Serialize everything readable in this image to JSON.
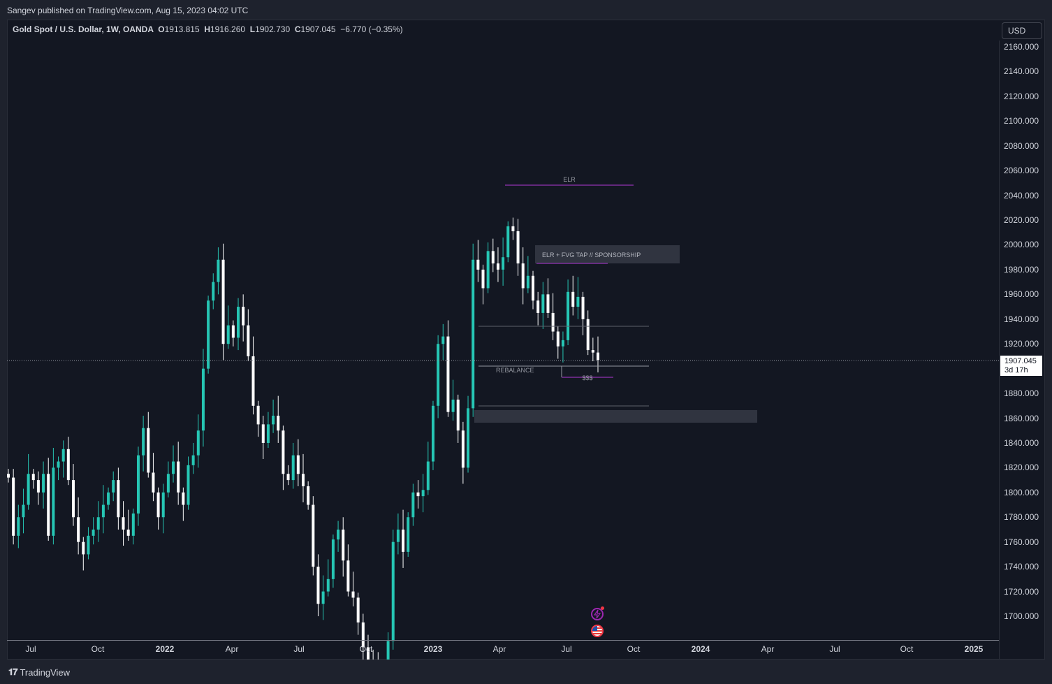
{
  "header": {
    "published": "Sangev published on TradingView.com, Aug 15, 2023 04:02 UTC"
  },
  "legend": {
    "symbol": "Gold Spot / U.S. Dollar, 1W, OANDA",
    "open_label": "O",
    "open": "1913.815",
    "high_label": "H",
    "high": "1916.260",
    "low_label": "L",
    "low": "1902.730",
    "close_label": "C",
    "close": "1907.045",
    "change": "−6.770 (−0.35%)"
  },
  "currency_button": "USD",
  "current_price": {
    "value": "1907.045",
    "countdown": "3d 17h"
  },
  "price_axis": [
    "2160.000",
    "2140.000",
    "2120.000",
    "2100.000",
    "2080.000",
    "2060.000",
    "2040.000",
    "2020.000",
    "2000.000",
    "1980.000",
    "1960.000",
    "1940.000",
    "1920.000",
    "1880.000",
    "1860.000",
    "1840.000",
    "1820.000",
    "1800.000",
    "1780.000",
    "1760.000",
    "1740.000",
    "1720.000",
    "1700.000"
  ],
  "time_axis": [
    {
      "label": "Jul",
      "year": false
    },
    {
      "label": "Oct",
      "year": false
    },
    {
      "label": "2022",
      "year": true
    },
    {
      "label": "Apr",
      "year": false
    },
    {
      "label": "Jul",
      "year": false
    },
    {
      "label": "Oct",
      "year": false
    },
    {
      "label": "2023",
      "year": true
    },
    {
      "label": "Apr",
      "year": false
    },
    {
      "label": "Jul",
      "year": false
    },
    {
      "label": "Oct",
      "year": false
    },
    {
      "label": "2024",
      "year": true
    },
    {
      "label": "Apr",
      "year": false
    },
    {
      "label": "Jul",
      "year": false
    },
    {
      "label": "Oct",
      "year": false
    },
    {
      "label": "2025",
      "year": true
    }
  ],
  "annotations": {
    "elr": "ELR",
    "elr_fvg": "ELR + FVG TAP // SPONSORSHIP",
    "rebalance": "REBALANCE",
    "sss": "$$$"
  },
  "colors": {
    "up": "#26c6b4",
    "down": "#ffffff",
    "background": "#131722",
    "annotation_line": "#b03ad6"
  },
  "icons": [
    "lightning-icon",
    "us-flag-icon"
  ],
  "footer": {
    "brand": "TradingView"
  }
}
